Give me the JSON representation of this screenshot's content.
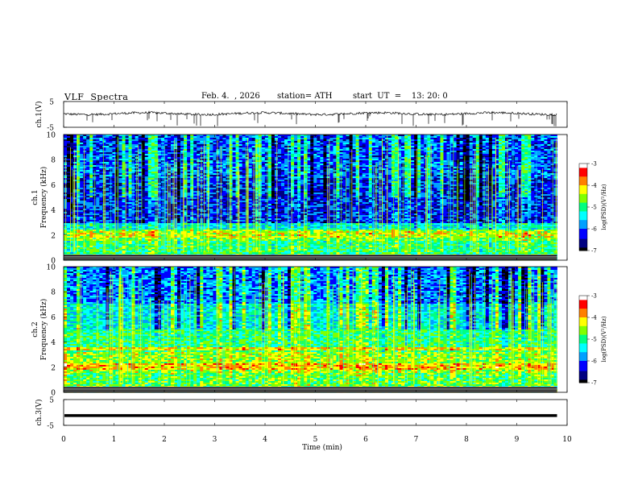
{
  "header": {
    "title": "VLF  Spectra",
    "date": "Feb. 4.  , 2026",
    "station": "station= ATH",
    "start": "start  UT  =    13: 20: 0"
  },
  "chart_data": [
    {
      "type": "line",
      "name": "ch1-waveform",
      "ylabel": "ch.1(V)",
      "ylim": [
        -5,
        5
      ],
      "yticks": [
        "5",
        "-5"
      ],
      "xlim": [
        0,
        10
      ],
      "x_end": 9.8,
      "series_description": "noisy waveform centred near +0.3 V with frequent spikes",
      "color": "#000000"
    },
    {
      "type": "heatmap",
      "name": "ch1-spectrogram",
      "ylabel": "ch.1\nFrequency (kHz)",
      "ylim": [
        0,
        10
      ],
      "yticks": [
        "0",
        "2",
        "4",
        "6",
        "8",
        "10"
      ],
      "xlim": [
        0,
        10
      ],
      "x_end": 9.8,
      "colorbar": {
        "label": "log(PSD)(V²/Hz)",
        "ticks": [
          "-3",
          "-4",
          "-5",
          "-6",
          "-7"
        ],
        "range": [
          -7,
          -3
        ]
      }
    },
    {
      "type": "heatmap",
      "name": "ch2-spectrogram",
      "ylabel": "ch.2\nFrequency (kHz)",
      "ylim": [
        0,
        10
      ],
      "yticks": [
        "0",
        "2",
        "4",
        "6",
        "8",
        "10"
      ],
      "xlim": [
        0,
        10
      ],
      "x_end": 9.8,
      "colorbar": {
        "label": "log(PSD)(V²/Hz)",
        "ticks": [
          "-3",
          "-4",
          "-5",
          "-6",
          "-7"
        ],
        "range": [
          -7,
          -3
        ]
      }
    },
    {
      "type": "line",
      "name": "ch3-waveform",
      "ylabel": "ch.3(V)",
      "ylim": [
        -5,
        5
      ],
      "yticks": [
        "5",
        "-5"
      ],
      "xlim": [
        0,
        10
      ],
      "x_end": 9.8,
      "series_description": "flat thick trace near -1.2 V",
      "level": -1.2,
      "color": "#000000"
    }
  ],
  "xaxis": {
    "label": "Time  (min)",
    "ticks": [
      "0",
      "1",
      "2",
      "3",
      "4",
      "5",
      "6",
      "7",
      "8",
      "9",
      "10"
    ]
  },
  "colors": {
    "colormap": [
      "#000000",
      "#000080",
      "#0000ff",
      "#00a0ff",
      "#00ffff",
      "#00ff80",
      "#80ff00",
      "#ffff00",
      "#ff8000",
      "#ff0000",
      "#ffffff"
    ]
  }
}
